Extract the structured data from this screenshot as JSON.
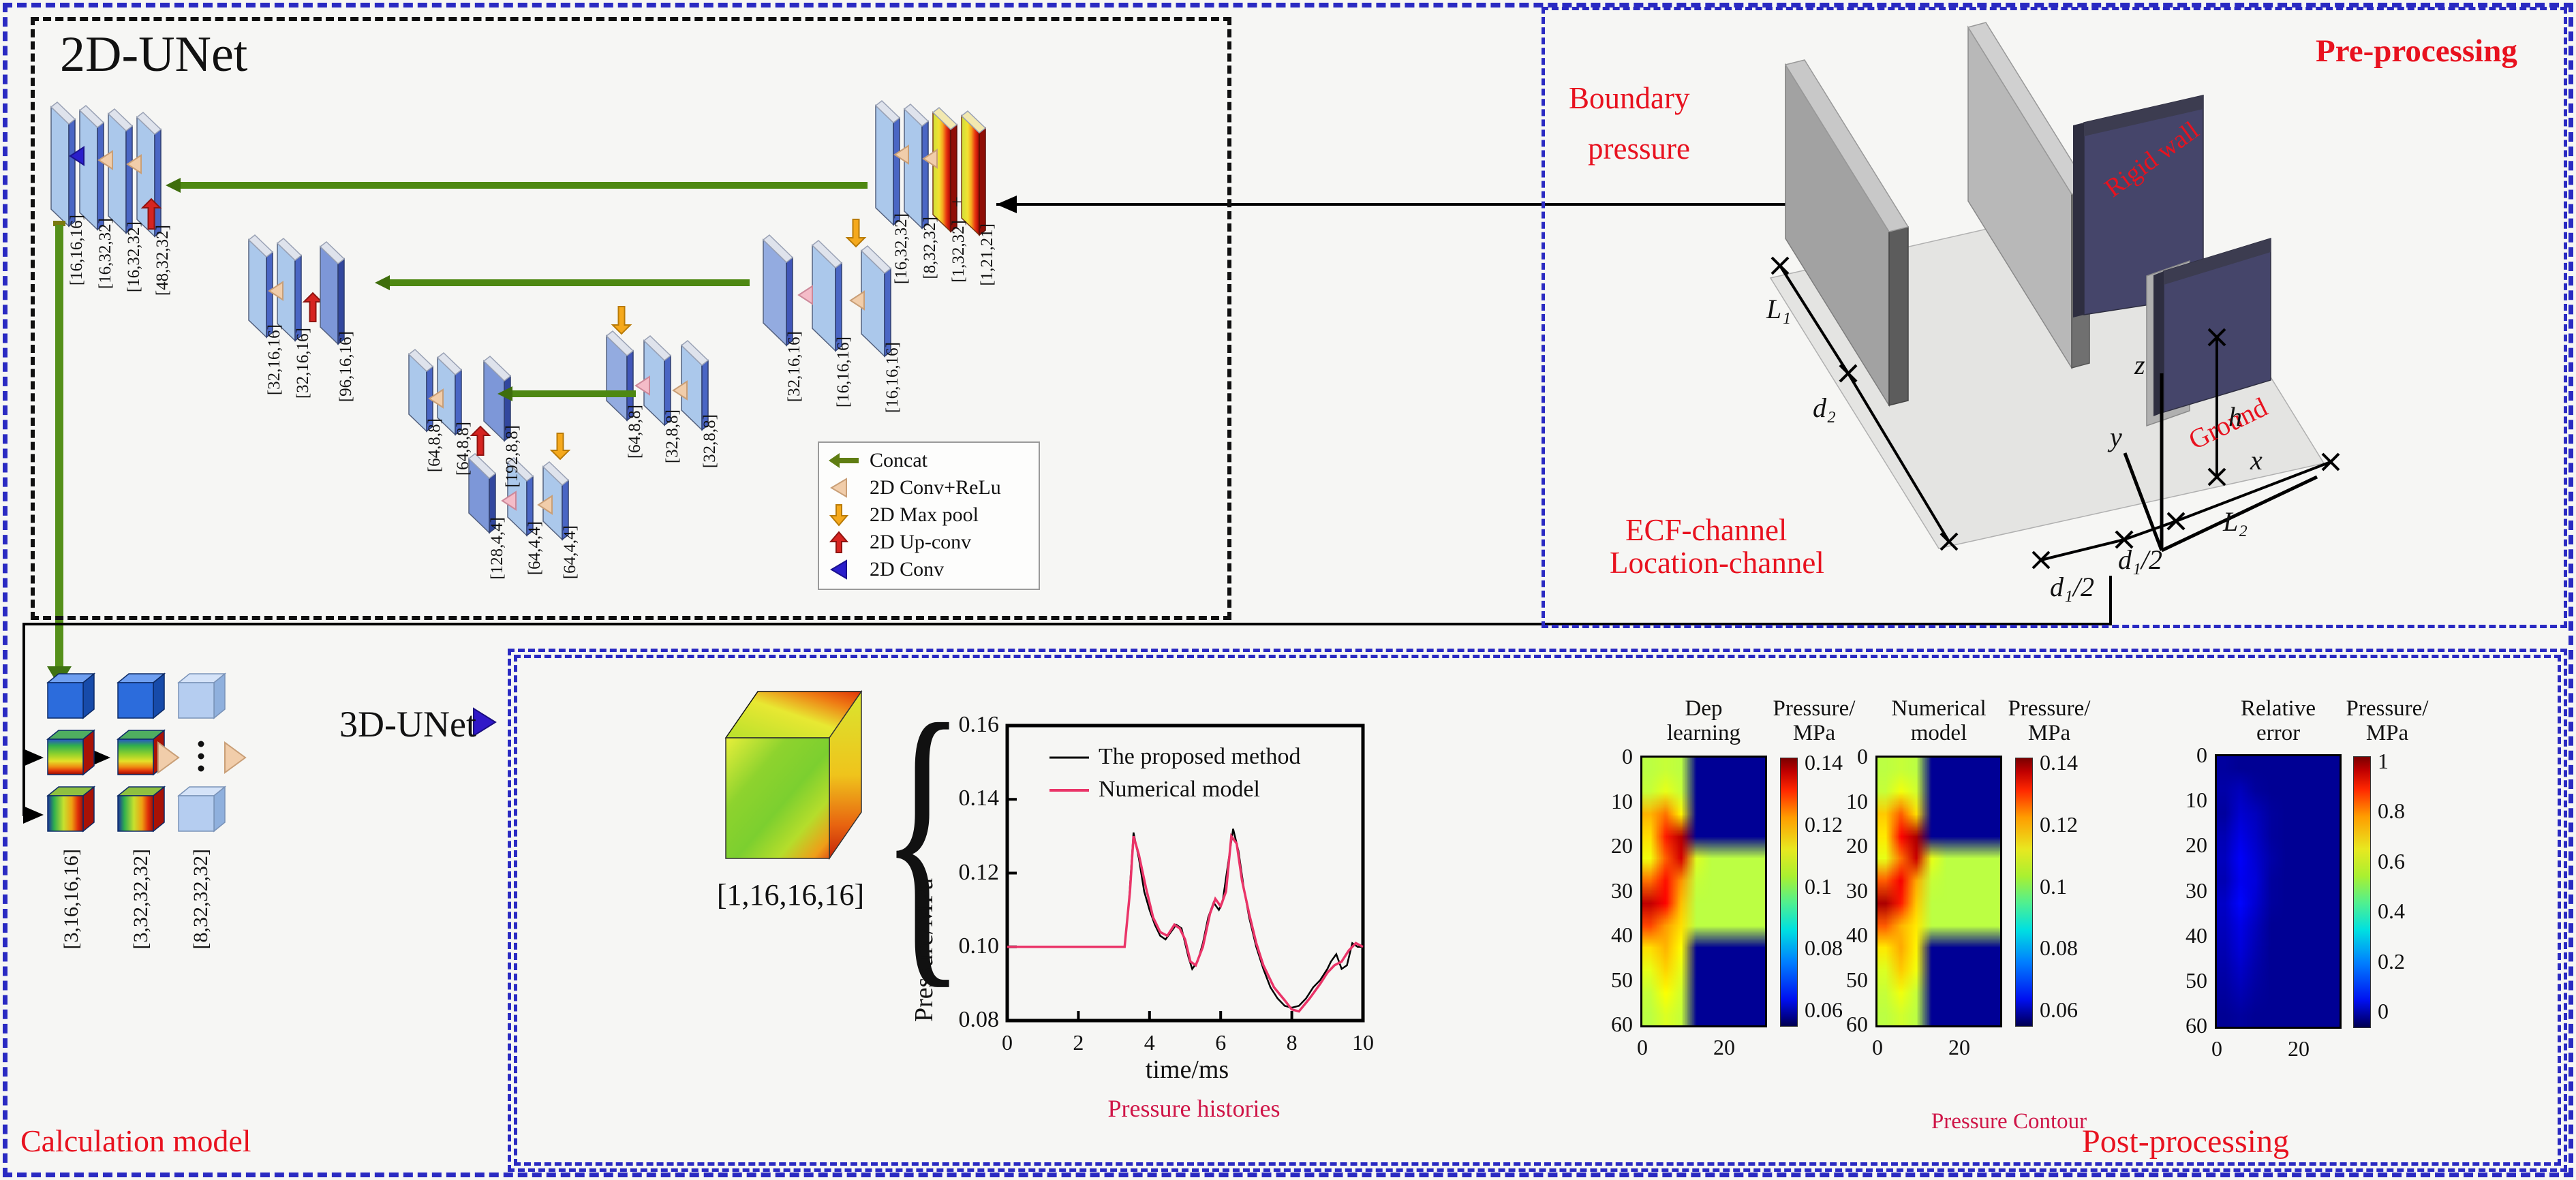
{
  "unet2d": {
    "title": "2D-UNet",
    "plane_labels": {
      "l1_enc": [
        "[16,16,16]",
        "[16,32,32]",
        "[16,32,32]",
        "[48,32,32]"
      ],
      "l2_left": [
        "[32,16,16]",
        "[32,16,16]",
        "[96,16,16]"
      ],
      "l3_left": [
        "[64,8,8]",
        "[64,8,8]",
        "[192,8,8]"
      ],
      "l4": [
        "[128,4,4]",
        "[64,4,4]",
        "[64,4,4]"
      ],
      "l3_right": [
        "[64,8,8]",
        "[32,8,8]",
        "[32,8,8]"
      ],
      "l2_right": [
        "[32,16,16]",
        "[16,16,16]",
        "[16,16,16]"
      ],
      "l1_dec": [
        "[16,32,32]",
        "[8,32,32]",
        "[1,32,32]",
        "[1,21,21]"
      ]
    },
    "legend": [
      {
        "icon": "concat-arrow-icon",
        "label": "Concat"
      },
      {
        "icon": "conv-relu-triangle-icon",
        "label": "2D Conv+ReLu"
      },
      {
        "icon": "max-pool-arrow-icon",
        "label": "2D Max pool"
      },
      {
        "icon": "up-conv-arrow-icon",
        "label": "2D Up-conv"
      },
      {
        "icon": "conv-triangle-icon",
        "label": "2D Conv"
      }
    ]
  },
  "preprocessing": {
    "title": "Pre-processing",
    "boundary_pressure_line1": "Boundary",
    "boundary_pressure_line2": "pressure",
    "rigid_wall": "Rigid wall",
    "ground": "Ground",
    "ecf_channel": "ECF-channel",
    "location_channel": "Location-channel",
    "dim_labels": [
      "L₁",
      "d₂",
      "d₁/2",
      "d₁/2",
      "L₂",
      "h"
    ],
    "axis_labels": [
      "z",
      "y",
      "x"
    ]
  },
  "calculation": {
    "title": "Calculation model",
    "cube_labels": [
      "[3,16,16,16]",
      "[3,32,32,32]",
      "[8,32,32,32]"
    ],
    "unet3d_label": "3D-UNet"
  },
  "postprocessing": {
    "title": "Post-processing",
    "input_cube_label": "[1,16,16,16]",
    "brace": "{",
    "pressure_histories_caption": "Pressure histories",
    "pressure_contour_caption": "Pressure Contour"
  },
  "chart_data": [
    {
      "type": "line",
      "title": "Pressure histories",
      "xlabel": "time/ms",
      "ylabel": "Pressure/MPa",
      "xlim": [
        0,
        10
      ],
      "ylim": [
        0.08,
        0.16
      ],
      "xticks": [
        0,
        2,
        4,
        6,
        8,
        10
      ],
      "yticks": [
        0.08,
        0.1,
        0.12,
        0.14,
        0.16
      ],
      "grid": false,
      "legend_position": "top-left",
      "series": [
        {
          "name": "The proposed method",
          "color": "#000000",
          "points": [
            [
              0,
              0.1
            ],
            [
              3.3,
              0.1
            ],
            [
              3.42,
              0.112
            ],
            [
              3.55,
              0.131
            ],
            [
              3.7,
              0.124
            ],
            [
              3.85,
              0.115
            ],
            [
              4.0,
              0.11
            ],
            [
              4.15,
              0.106
            ],
            [
              4.3,
              0.103
            ],
            [
              4.45,
              0.102
            ],
            [
              4.6,
              0.104
            ],
            [
              4.75,
              0.106
            ],
            [
              4.9,
              0.105
            ],
            [
              5.0,
              0.101
            ],
            [
              5.1,
              0.097
            ],
            [
              5.2,
              0.094
            ],
            [
              5.35,
              0.096
            ],
            [
              5.5,
              0.101
            ],
            [
              5.65,
              0.108
            ],
            [
              5.8,
              0.112
            ],
            [
              5.95,
              0.11
            ],
            [
              6.05,
              0.112
            ],
            [
              6.2,
              0.122
            ],
            [
              6.35,
              0.132
            ],
            [
              6.5,
              0.126
            ],
            [
              6.65,
              0.116
            ],
            [
              6.8,
              0.108
            ],
            [
              7.0,
              0.1
            ],
            [
              7.2,
              0.094
            ],
            [
              7.4,
              0.089
            ],
            [
              7.6,
              0.086
            ],
            [
              7.8,
              0.084
            ],
            [
              8.0,
              0.0835
            ],
            [
              8.2,
              0.084
            ],
            [
              8.4,
              0.086
            ],
            [
              8.6,
              0.089
            ],
            [
              8.8,
              0.091
            ],
            [
              9.0,
              0.094
            ],
            [
              9.1,
              0.096
            ],
            [
              9.25,
              0.098
            ],
            [
              9.4,
              0.094
            ],
            [
              9.55,
              0.095
            ],
            [
              9.7,
              0.101
            ],
            [
              9.85,
              0.1
            ],
            [
              10,
              0.1
            ]
          ]
        },
        {
          "name": "Numerical model",
          "color": "#ea3468",
          "points": [
            [
              0,
              0.1
            ],
            [
              3.3,
              0.1
            ],
            [
              3.45,
              0.115
            ],
            [
              3.55,
              0.13
            ],
            [
              3.7,
              0.125
            ],
            [
              3.9,
              0.116
            ],
            [
              4.1,
              0.108
            ],
            [
              4.3,
              0.104
            ],
            [
              4.5,
              0.103
            ],
            [
              4.7,
              0.106
            ],
            [
              4.85,
              0.105
            ],
            [
              5.0,
              0.102
            ],
            [
              5.15,
              0.096
            ],
            [
              5.3,
              0.095
            ],
            [
              5.5,
              0.1
            ],
            [
              5.7,
              0.109
            ],
            [
              5.85,
              0.113
            ],
            [
              6.0,
              0.111
            ],
            [
              6.15,
              0.115
            ],
            [
              6.3,
              0.13
            ],
            [
              6.45,
              0.128
            ],
            [
              6.6,
              0.118
            ],
            [
              6.8,
              0.109
            ],
            [
              7.0,
              0.101
            ],
            [
              7.2,
              0.095
            ],
            [
              7.5,
              0.089
            ],
            [
              7.8,
              0.0855
            ],
            [
              8.0,
              0.083
            ],
            [
              8.2,
              0.0825
            ],
            [
              8.5,
              0.086
            ],
            [
              8.8,
              0.09
            ],
            [
              9.0,
              0.093
            ],
            [
              9.2,
              0.095
            ],
            [
              9.4,
              0.096
            ],
            [
              9.6,
              0.099
            ],
            [
              9.8,
              0.101
            ],
            [
              10,
              0.1
            ]
          ]
        }
      ]
    },
    {
      "type": "heatmap",
      "title_line1": "Dep",
      "title_line2": "learning",
      "colorbar_title_line1": "Pressure/",
      "colorbar_title_line2": "MPa",
      "xlim": [
        0,
        30
      ],
      "ylim": [
        0,
        60
      ],
      "xticks": [
        0,
        20
      ],
      "yticks": [
        0,
        10,
        20,
        30,
        40,
        50,
        60
      ],
      "colorbar_ticks": [
        0.14,
        0.12,
        0.1,
        0.08,
        0.06
      ],
      "value_domain": [
        0.048,
        0.141
      ],
      "grid_values": [
        [
          0.1,
          0.101,
          0.1,
          0.05,
          0.05,
          0.05,
          0.05,
          0.05
        ],
        [
          0.101,
          0.104,
          0.101,
          0.05,
          0.05,
          0.05,
          0.05,
          0.05
        ],
        [
          0.113,
          0.119,
          0.107,
          0.05,
          0.05,
          0.05,
          0.05,
          0.05
        ],
        [
          0.109,
          0.127,
          0.136,
          0.05,
          0.05,
          0.05,
          0.05,
          0.05
        ],
        [
          0.105,
          0.121,
          0.133,
          0.103,
          0.1,
          0.1,
          0.1,
          0.1
        ],
        [
          0.119,
          0.128,
          0.116,
          0.101,
          0.1,
          0.1,
          0.1,
          0.1
        ],
        [
          0.135,
          0.129,
          0.112,
          0.1,
          0.1,
          0.1,
          0.1,
          0.1
        ],
        [
          0.123,
          0.115,
          0.109,
          0.1,
          0.1,
          0.1,
          0.1,
          0.1
        ],
        [
          0.109,
          0.113,
          0.106,
          0.05,
          0.05,
          0.05,
          0.05,
          0.05
        ],
        [
          0.104,
          0.11,
          0.104,
          0.05,
          0.05,
          0.05,
          0.05,
          0.05
        ],
        [
          0.101,
          0.106,
          0.102,
          0.05,
          0.05,
          0.05,
          0.05,
          0.05
        ],
        [
          0.1,
          0.103,
          0.101,
          0.05,
          0.05,
          0.05,
          0.05,
          0.05
        ]
      ]
    },
    {
      "type": "heatmap",
      "title_line1": "Numerical",
      "title_line2": "model",
      "colorbar_title_line1": "Pressure/",
      "colorbar_title_line2": "MPa",
      "xlim": [
        0,
        30
      ],
      "ylim": [
        0,
        60
      ],
      "xticks": [
        0,
        20
      ],
      "yticks": [
        0,
        10,
        20,
        30,
        40,
        50,
        60
      ],
      "colorbar_ticks": [
        0.14,
        0.12,
        0.1,
        0.08,
        0.06
      ],
      "value_domain": [
        0.048,
        0.141
      ],
      "grid_values": [
        [
          0.1,
          0.101,
          0.1,
          0.05,
          0.05,
          0.05,
          0.05,
          0.05
        ],
        [
          0.101,
          0.105,
          0.102,
          0.05,
          0.05,
          0.05,
          0.05,
          0.05
        ],
        [
          0.111,
          0.121,
          0.109,
          0.05,
          0.05,
          0.05,
          0.05,
          0.05
        ],
        [
          0.108,
          0.129,
          0.137,
          0.05,
          0.05,
          0.05,
          0.05,
          0.05
        ],
        [
          0.104,
          0.119,
          0.134,
          0.104,
          0.1,
          0.1,
          0.1,
          0.1
        ],
        [
          0.121,
          0.13,
          0.114,
          0.101,
          0.1,
          0.1,
          0.1,
          0.1
        ],
        [
          0.137,
          0.127,
          0.111,
          0.1,
          0.1,
          0.1,
          0.1,
          0.1
        ],
        [
          0.121,
          0.113,
          0.108,
          0.1,
          0.1,
          0.1,
          0.1,
          0.1
        ],
        [
          0.108,
          0.114,
          0.107,
          0.05,
          0.05,
          0.05,
          0.05,
          0.05
        ],
        [
          0.103,
          0.111,
          0.105,
          0.05,
          0.05,
          0.05,
          0.05,
          0.05
        ],
        [
          0.101,
          0.105,
          0.101,
          0.05,
          0.05,
          0.05,
          0.05,
          0.05
        ],
        [
          0.1,
          0.102,
          0.1,
          0.05,
          0.05,
          0.05,
          0.05,
          0.05
        ]
      ]
    },
    {
      "type": "heatmap",
      "title_line1": "Relative",
      "title_line2": "error",
      "colorbar_title_line1": "Pressure/",
      "colorbar_title_line2": "MPa",
      "xlim": [
        0,
        30
      ],
      "ylim": [
        0,
        60
      ],
      "xticks": [
        0,
        20
      ],
      "yticks": [
        0,
        10,
        20,
        30,
        40,
        50,
        60
      ],
      "colorbar_ticks": [
        1.0,
        0.8,
        0.6,
        0.4,
        0.2,
        0
      ],
      "value_domain": [
        0,
        1
      ],
      "grid_values": [
        [
          0.03,
          0.02,
          0.02,
          0.02,
          0.02,
          0.02,
          0.02,
          0.02
        ],
        [
          0.04,
          0.06,
          0.03,
          0.02,
          0.02,
          0.02,
          0.02,
          0.02
        ],
        [
          0.03,
          0.08,
          0.06,
          0.03,
          0.02,
          0.02,
          0.02,
          0.02
        ],
        [
          0.05,
          0.1,
          0.07,
          0.03,
          0.02,
          0.02,
          0.02,
          0.02
        ],
        [
          0.06,
          0.12,
          0.08,
          0.04,
          0.02,
          0.02,
          0.02,
          0.02
        ],
        [
          0.05,
          0.11,
          0.09,
          0.03,
          0.02,
          0.02,
          0.02,
          0.02
        ],
        [
          0.07,
          0.13,
          0.08,
          0.03,
          0.02,
          0.02,
          0.02,
          0.02
        ],
        [
          0.06,
          0.1,
          0.06,
          0.02,
          0.02,
          0.02,
          0.02,
          0.02
        ],
        [
          0.05,
          0.09,
          0.05,
          0.02,
          0.02,
          0.02,
          0.02,
          0.02
        ],
        [
          0.04,
          0.07,
          0.04,
          0.02,
          0.02,
          0.02,
          0.02,
          0.02
        ],
        [
          0.03,
          0.05,
          0.03,
          0.02,
          0.02,
          0.02,
          0.02,
          0.02
        ],
        [
          0.02,
          0.03,
          0.02,
          0.02,
          0.02,
          0.02,
          0.02,
          0.02
        ]
      ]
    }
  ]
}
